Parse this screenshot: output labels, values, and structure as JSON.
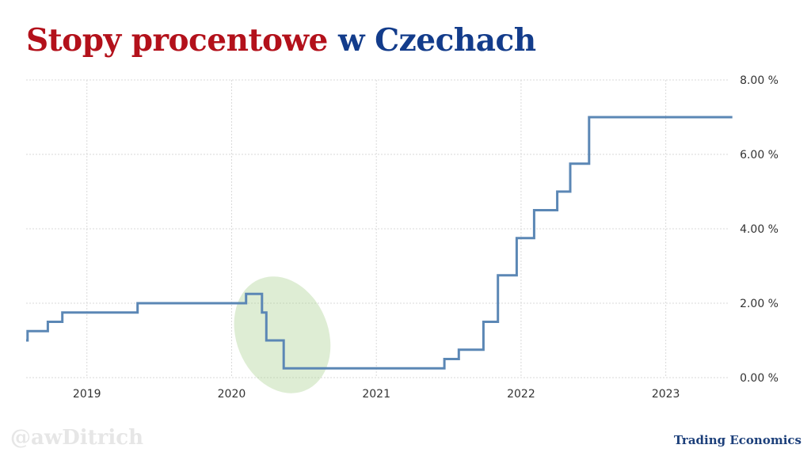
{
  "title_part1": "Stopy procentowe",
  "title_part2": "w Czechach",
  "watermark": "@awDitrich",
  "source": "Trading Economics",
  "colors": {
    "title_red": "#b3111b",
    "title_blue": "#133c8b",
    "line": "#5b87b5",
    "highlight": "#a9d08e",
    "grid": "#d9d9d9"
  },
  "chart_data": {
    "type": "line",
    "step": true,
    "x_ticks": [
      "2019",
      "2020",
      "2021",
      "2022",
      "2023"
    ],
    "y_ticks": [
      "0.00 %",
      "2.00 %",
      "4.00 %",
      "6.00 %",
      "8.00 %"
    ],
    "ylim": [
      0,
      8
    ],
    "xlim": [
      2018.58,
      2023.5
    ],
    "grid": "dotted",
    "y_axis_position": "right",
    "highlight": "2020-2020.5 rate cuts",
    "series": [
      {
        "points": [
          [
            2018.58,
            1.0
          ],
          [
            2018.59,
            1.25
          ],
          [
            2018.73,
            1.5
          ],
          [
            2018.83,
            1.75
          ],
          [
            2019.35,
            2.0
          ],
          [
            2020.1,
            2.25
          ],
          [
            2020.21,
            1.75
          ],
          [
            2020.24,
            1.0
          ],
          [
            2020.36,
            0.25
          ],
          [
            2021.47,
            0.5
          ],
          [
            2021.57,
            0.75
          ],
          [
            2021.74,
            1.5
          ],
          [
            2021.84,
            2.75
          ],
          [
            2021.97,
            3.75
          ],
          [
            2022.09,
            4.5
          ],
          [
            2022.25,
            5.0
          ],
          [
            2022.34,
            5.75
          ],
          [
            2022.47,
            7.0
          ],
          [
            2023.46,
            7.0
          ]
        ]
      }
    ]
  }
}
